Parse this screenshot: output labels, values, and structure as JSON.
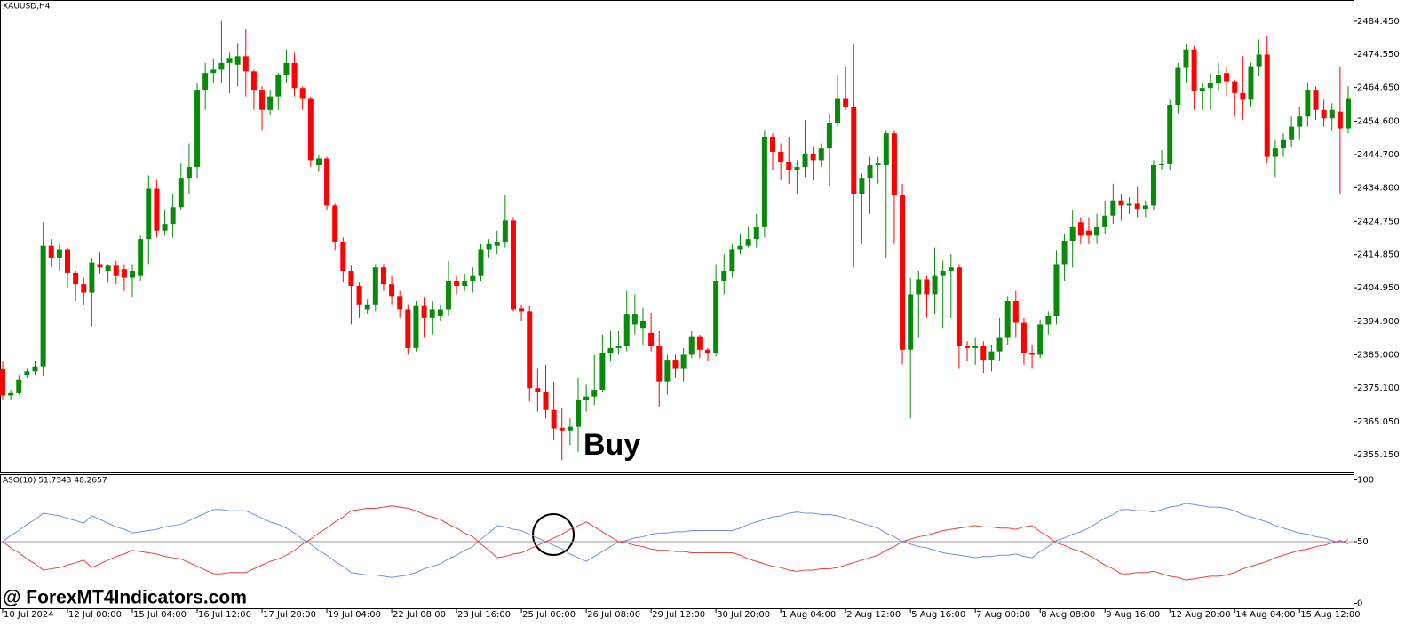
{
  "watermark": "@ ForexMT4Indicators.com",
  "chart_data": [
    {
      "type": "candlestick",
      "title": "XAUUSD,H4",
      "annotation": "Buy",
      "up_color": "#0a8a0a",
      "down_color": "#ff0000",
      "ylim": [
        2349.9,
        2490.5
      ],
      "yticks": [
        {
          "value": 2484.45,
          "label": "2484.450"
        },
        {
          "value": 2474.55,
          "label": "2474.550"
        },
        {
          "value": 2464.65,
          "label": "2464.650"
        },
        {
          "value": 2454.6,
          "label": "2454.600"
        },
        {
          "value": 2444.7,
          "label": "2444.700"
        },
        {
          "value": 2434.8,
          "label": "2434.800"
        },
        {
          "value": 2424.75,
          "label": "2424.750"
        },
        {
          "value": 2414.85,
          "label": "2414.850"
        },
        {
          "value": 2404.95,
          "label": "2404.950"
        },
        {
          "value": 2394.9,
          "label": "2394.900"
        },
        {
          "value": 2385,
          "label": "2385.000"
        },
        {
          "value": 2375.1,
          "label": "2375.100"
        },
        {
          "value": 2365.05,
          "label": "2365.050"
        },
        {
          "value": 2355.15,
          "label": "2355.150"
        }
      ],
      "categories": [
        "10 Jul 2024",
        null,
        null,
        null,
        null,
        null,
        null,
        null,
        "12 Jul 00:00",
        null,
        null,
        null,
        null,
        null,
        null,
        null,
        "15 Jul 04:00",
        null,
        null,
        null,
        null,
        null,
        null,
        null,
        "16 Jul 12:00",
        null,
        null,
        null,
        null,
        null,
        null,
        null,
        "17 Jul 20:00",
        null,
        null,
        null,
        null,
        null,
        null,
        null,
        "19 Jul 04:00",
        null,
        null,
        null,
        null,
        null,
        null,
        null,
        "22 Jul 08:00",
        null,
        null,
        null,
        null,
        null,
        null,
        null,
        "23 Jul 16:00",
        null,
        null,
        null,
        null,
        null,
        null,
        null,
        "25 Jul 00:00",
        null,
        null,
        null,
        null,
        null,
        null,
        null,
        "26 Jul 08:00",
        null,
        null,
        null,
        null,
        null,
        null,
        null,
        "29 Jul 12:00",
        null,
        null,
        null,
        null,
        null,
        null,
        null,
        "30 Jul 20:00",
        null,
        null,
        null,
        null,
        null,
        null,
        null,
        "1 Aug 04:00",
        null,
        null,
        null,
        null,
        null,
        null,
        null,
        "2 Aug 12:00",
        null,
        null,
        null,
        null,
        null,
        null,
        null,
        "5 Aug 16:00",
        null,
        null,
        null,
        null,
        null,
        null,
        null,
        "7 Aug 00:00",
        null,
        null,
        null,
        null,
        null,
        null,
        null,
        "8 Aug 08:00",
        null,
        null,
        null,
        null,
        null,
        null,
        null,
        "9 Aug 16:00",
        null,
        null,
        null,
        null,
        null,
        null,
        null,
        "12 Aug 20:00",
        null,
        null,
        null,
        null,
        null,
        null,
        null,
        "14 Aug 04:00",
        null,
        null,
        null,
        null,
        null,
        null,
        null,
        "15 Aug 12:00",
        null,
        null,
        null,
        null,
        null,
        null
      ],
      "open": [
        2380.8,
        2372.8,
        2373.5,
        2379,
        2380,
        2381.5,
        2417.5,
        2414,
        2416.5,
        2409.5,
        2406,
        2403.5,
        2412,
        2410,
        2411.5,
        2410.5,
        2408,
        2408.5,
        2419.5,
        2434.5,
        2422,
        2424,
        2429,
        2437.5,
        2441,
        2464,
        2469,
        2470,
        2472,
        2471.5,
        2474,
        2469.5,
        2464,
        2458,
        2462,
        2468.5,
        2472,
        2464.5,
        2461.5,
        2441.5,
        2443.5,
        2429.5,
        2418.5,
        2410,
        2405.5,
        2398.5,
        2400,
        2411,
        2406,
        2402.5,
        2398.5,
        2387,
        2399.5,
        2396,
        2396.5,
        2398.5,
        2407,
        2405.5,
        2407,
        2408.5,
        2416.5,
        2417.5,
        2418.5,
        2425,
        2398.8,
        2398,
        2375,
        2374,
        2368.5,
        2363.2,
        2362.4,
        2363.5,
        2371.5,
        2372.5,
        2374.5,
        2385.5,
        2387,
        2387.5,
        2394,
        2393,
        2391.5,
        2387.5,
        2377,
        2383.5,
        2381,
        2385,
        2390.5,
        2386.5,
        2385.5,
        2407,
        2410,
        2416.5,
        2417.5,
        2419.5,
        2423,
        2450,
        2445.5,
        2442.5,
        2440,
        2441,
        2445,
        2443,
        2446.5,
        2454,
        2461.5,
        2459,
        2433,
        2437.5,
        2441.5,
        2441.5,
        2451,
        2432.5,
        2386.5,
        2403,
        2407.5,
        2403,
        2408.5,
        2410,
        2411,
        2387.5,
        2387,
        2387.5,
        2383.5,
        2386,
        2390,
        2401,
        2394.5,
        2385.5,
        2385,
        2394,
        2396.5,
        2412,
        2419,
        2424.5,
        2422,
        2420.5,
        2423,
        2426.5,
        2431,
        2429.5,
        2430,
        2428.5,
        2429.5,
        2441.5,
        2441.8,
        2459.5,
        2470.5,
        2476,
        2463.5,
        2464.5,
        2466,
        2469,
        2466.5,
        2463,
        2461,
        2471,
        2474.5,
        2444,
        2446.5,
        2449,
        2453,
        2456,
        2464,
        2458,
        2455.5,
        2457.5,
        2452.5
      ],
      "high": [
        2383,
        2374.5,
        2379,
        2381,
        2383,
        2424.5,
        2419.5,
        2418,
        2417,
        2410,
        2408,
        2414,
        2415.5,
        2412,
        2413,
        2412,
        2412,
        2420.5,
        2438.5,
        2437,
        2428,
        2433,
        2442,
        2448,
        2466,
        2472,
        2473,
        2484.5,
        2475,
        2478,
        2482,
        2470,
        2465,
        2464,
        2469,
        2476,
        2475,
        2465,
        2462,
        2444.5,
        2444,
        2430,
        2420,
        2411.5,
        2406.5,
        2401.5,
        2412,
        2412,
        2408.5,
        2404,
        2400,
        2401,
        2402,
        2401,
        2400,
        2413,
        2408.5,
        2409,
        2411,
        2418,
        2419.5,
        2422,
        2432.5,
        2426,
        2400,
        2399.5,
        2381,
        2382,
        2377,
        2369,
        2366,
        2378,
        2376,
        2385,
        2391,
        2392,
        2392,
        2404,
        2403,
        2399,
        2397.5,
        2392,
        2385,
        2385,
        2387,
        2392,
        2391,
        2387,
        2412,
        2415,
        2418,
        2421,
        2423,
        2427,
        2452,
        2451,
        2448,
        2450,
        2443,
        2455,
        2447,
        2448,
        2457,
        2468.5,
        2471,
        2477.5,
        2439,
        2444,
        2444,
        2452,
        2452,
        2436,
        2408,
        2410,
        2408.5,
        2417,
        2413,
        2415,
        2412,
        2389,
        2390,
        2389,
        2388,
        2396,
        2402.5,
        2404,
        2396,
        2388,
        2395.5,
        2398,
        2416,
        2421,
        2428,
        2426,
        2426,
        2427,
        2431,
        2436,
        2433,
        2432,
        2435,
        2431,
        2443,
        2446,
        2461,
        2472,
        2477.5,
        2477,
        2466,
        2469,
        2472,
        2471,
        2467,
        2474,
        2472,
        2479,
        2480,
        2449,
        2451,
        2456,
        2459,
        2466,
        2465,
        2461,
        2460,
        2471,
        2465
      ],
      "low": [
        2371.5,
        2371.5,
        2373,
        2378,
        2379,
        2378.5,
        2411,
        2410,
        2405,
        2401,
        2400,
        2393.5,
        2409,
        2406.5,
        2406,
        2404,
        2402,
        2407,
        2412,
        2420,
        2420.5,
        2420,
        2428,
        2433,
        2437.5,
        2458,
        2466,
        2466,
        2463,
        2465,
        2462,
        2458,
        2452,
        2456.5,
        2458,
        2466,
        2462,
        2458,
        2441,
        2439.5,
        2428,
        2416,
        2406.5,
        2394,
        2396,
        2397,
        2398,
        2404,
        2400,
        2396,
        2385,
        2386,
        2390,
        2391,
        2395,
        2396.5,
        2403,
        2404,
        2403.5,
        2407,
        2414,
        2415,
        2417,
        2398,
        2395,
        2371,
        2368,
        2366,
        2359.5,
        2353.5,
        2358,
        2356,
        2368,
        2370,
        2374,
        2383,
        2385,
        2386,
        2391,
        2388,
        2386,
        2369.5,
        2373,
        2378,
        2377,
        2384,
        2384,
        2383,
        2384.5,
        2403,
        2408,
        2415,
        2417,
        2417,
        2420,
        2440,
        2437,
        2436,
        2433,
        2438,
        2437,
        2441,
        2435,
        2453,
        2458,
        2411,
        2418,
        2427,
        2436,
        2414,
        2418,
        2382,
        2366,
        2390,
        2396,
        2397,
        2393,
        2396,
        2381,
        2383,
        2382,
        2379.5,
        2380,
        2383,
        2388,
        2390,
        2382,
        2381,
        2384,
        2391,
        2394,
        2407,
        2411,
        2418,
        2418,
        2418,
        2421,
        2424,
        2425,
        2427,
        2426,
        2426,
        2428,
        2440,
        2440,
        2457,
        2466,
        2458,
        2458,
        2458,
        2464,
        2462,
        2456,
        2455,
        2459,
        2468,
        2442,
        2438,
        2444,
        2447,
        2449,
        2453,
        2455,
        2453,
        2452,
        2433,
        2451
      ],
      "close": [
        2372.8,
        2373.5,
        2377.5,
        2380,
        2381.5,
        2417.5,
        2414,
        2416.5,
        2409.5,
        2406,
        2403.5,
        2412.5,
        2411,
        2411.5,
        2408.5,
        2408,
        2410,
        2419.5,
        2434.5,
        2422,
        2424,
        2429,
        2437.5,
        2441,
        2464,
        2469,
        2470,
        2472,
        2473.5,
        2474,
        2469.5,
        2464,
        2458,
        2462,
        2468.5,
        2472,
        2464.5,
        2461.5,
        2443,
        2443.5,
        2429.5,
        2418.5,
        2410,
        2405.5,
        2400,
        2400,
        2411,
        2406,
        2402.5,
        2398.5,
        2387,
        2399.5,
        2396,
        2398.5,
        2398.5,
        2407,
        2405.5,
        2407,
        2408.5,
        2416.5,
        2418,
        2418.5,
        2425,
        2398.5,
        2398,
        2375,
        2374,
        2368.5,
        2363,
        2362.4,
        2363.5,
        2371.5,
        2372.5,
        2374.5,
        2385.5,
        2387,
        2387.5,
        2397,
        2397,
        2395,
        2387.5,
        2377,
        2383.5,
        2381,
        2385,
        2390.5,
        2386.5,
        2385.5,
        2407,
        2410,
        2416.5,
        2417.5,
        2419.5,
        2423,
        2450,
        2445.5,
        2442.5,
        2440,
        2441,
        2445,
        2443,
        2446.5,
        2454,
        2461.5,
        2459,
        2433,
        2437.5,
        2441.5,
        2442,
        2451,
        2432.5,
        2386.5,
        2403,
        2407.5,
        2403,
        2408.5,
        2410,
        2411,
        2387.5,
        2387,
        2387.5,
        2383.5,
        2386,
        2390,
        2401,
        2394.5,
        2385.5,
        2385,
        2394,
        2396.5,
        2412,
        2419,
        2423,
        2420.5,
        2420.5,
        2423,
        2426.5,
        2431,
        2429.5,
        2430,
        2428.5,
        2429.5,
        2441.5,
        2441.8,
        2459.5,
        2470.5,
        2476,
        2463.5,
        2464.5,
        2466,
        2468.5,
        2466.5,
        2463,
        2461,
        2471,
        2474.5,
        2444,
        2446.5,
        2449,
        2453,
        2456,
        2464,
        2458,
        2455.5,
        2458,
        2452.5,
        2461.5
      ]
    },
    {
      "type": "line",
      "title": "ASO(10) 51.7343 48.2657",
      "ylim": [
        -4,
        104
      ],
      "yticks": [
        0,
        50,
        100
      ],
      "levels": [
        50
      ],
      "level_color": "#999999",
      "series": [
        {
          "color": "#6f8fef",
          "values": [
            50,
            55,
            59,
            64,
            68,
            73,
            72,
            71,
            69,
            67,
            65,
            71,
            68,
            65,
            62,
            60,
            57,
            58,
            59,
            60,
            62,
            63,
            64,
            67,
            70,
            73,
            76,
            76,
            75,
            75,
            75,
            72,
            69,
            66,
            64,
            61,
            57,
            52,
            48,
            43,
            39,
            34,
            30,
            25,
            24,
            23,
            23,
            22,
            21,
            22,
            23,
            25,
            28,
            30,
            32,
            36,
            39,
            43,
            46,
            52,
            57,
            63,
            62,
            60,
            59,
            56,
            53,
            50,
            47,
            44,
            40,
            37,
            34,
            38,
            42,
            46,
            50,
            51,
            53,
            54,
            56,
            57,
            57,
            58,
            58,
            59,
            59,
            59,
            59,
            59,
            59,
            61,
            64,
            66,
            68,
            70,
            71,
            73,
            74,
            73,
            73,
            72,
            72,
            71,
            69,
            67,
            65,
            63,
            61,
            57,
            54,
            50,
            48,
            46,
            45,
            43,
            41,
            40,
            39,
            38,
            37,
            38,
            38,
            39,
            39,
            40,
            38,
            37,
            42,
            46,
            51,
            53,
            56,
            58,
            61,
            65,
            69,
            72,
            76,
            76,
            75,
            75,
            74,
            76,
            78,
            79,
            81,
            80,
            79,
            78,
            78,
            77,
            75,
            72,
            70,
            68,
            66,
            63,
            61,
            59,
            57,
            56,
            54,
            53,
            51,
            49,
            51.7343
          ]
        },
        {
          "color": "#f04040",
          "values": [
            50,
            45,
            41,
            36,
            32,
            27,
            28,
            29,
            31,
            33,
            35,
            29,
            32,
            35,
            38,
            40,
            43,
            42,
            41,
            40,
            38,
            37,
            36,
            33,
            30,
            27,
            24,
            24,
            25,
            25,
            25,
            28,
            31,
            34,
            36,
            39,
            43,
            48,
            52,
            57,
            61,
            66,
            70,
            75,
            76,
            77,
            77,
            78,
            79,
            78,
            77,
            75,
            72,
            70,
            68,
            64,
            61,
            57,
            54,
            48,
            43,
            37,
            38,
            40,
            41,
            44,
            47,
            50,
            53,
            56,
            60,
            63,
            66,
            62,
            58,
            54,
            50,
            49,
            47,
            46,
            44,
            43,
            43,
            42,
            42,
            41,
            41,
            41,
            41,
            41,
            41,
            39,
            36,
            34,
            32,
            30,
            29,
            27,
            26,
            27,
            27,
            28,
            28,
            29,
            31,
            33,
            35,
            37,
            39,
            43,
            46,
            50,
            52,
            54,
            55,
            57,
            59,
            60,
            61,
            62,
            63,
            62,
            62,
            61,
            61,
            60,
            62,
            63,
            58,
            54,
            49,
            47,
            44,
            42,
            39,
            35,
            31,
            28,
            24,
            24,
            25,
            25,
            26,
            24,
            22,
            21,
            19,
            20,
            21,
            22,
            22,
            23,
            25,
            28,
            30,
            32,
            34,
            37,
            39,
            41,
            43,
            44,
            46,
            47,
            49,
            51,
            48.2657
          ]
        }
      ]
    }
  ]
}
